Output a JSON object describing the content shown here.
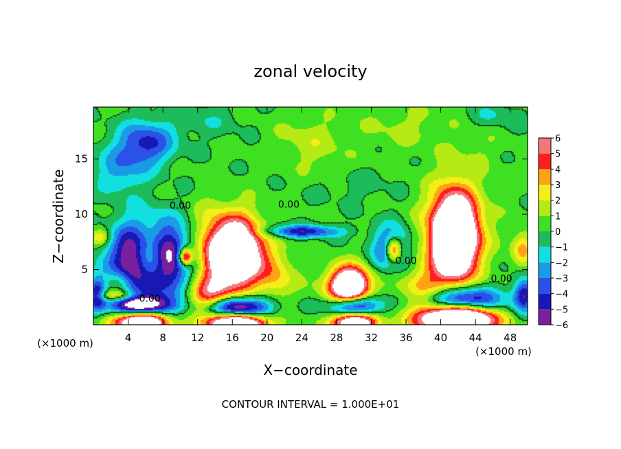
{
  "chart_data": {
    "type": "heatmap",
    "title": "zonal velocity",
    "xlabel": "X−coordinate",
    "ylabel": "Z−coordinate",
    "x_unit_left": "(×1000 m)",
    "x_unit_right": "(×1000 m)",
    "xlim": [
      0,
      50
    ],
    "ylim": [
      0,
      19.7
    ],
    "x_ticks": [
      4,
      8,
      12,
      16,
      20,
      24,
      28,
      32,
      36,
      40,
      44,
      48
    ],
    "x_tick_labels": [
      "4",
      "8",
      "12",
      "16",
      "20",
      "24",
      "28",
      "32",
      "36",
      "40",
      "44",
      "48"
    ],
    "y_ticks": [
      5,
      10,
      15
    ],
    "y_tick_labels": [
      "5",
      "10",
      "15"
    ],
    "colorbar": {
      "min": -6,
      "max": 6,
      "levels": [
        -6,
        -5,
        -4,
        -3,
        -2,
        -1,
        0,
        1,
        2,
        3,
        4,
        5,
        6
      ],
      "labels": [
        "6",
        "5",
        "4",
        "3",
        "2",
        "1",
        "0",
        "−1",
        "−2",
        "−3",
        "−4",
        "−5",
        "−6"
      ]
    },
    "contour_labels": [
      "0.00",
      "0.00",
      "0.00",
      "0.00",
      "0.00"
    ],
    "features": [
      {
        "x": 6,
        "z": 16.5,
        "value": -4.5,
        "sx": 3.2,
        "sz": 2.0
      },
      {
        "x": 3,
        "z": 14,
        "value": -2.5,
        "sx": 3.0,
        "sz": 2.2
      },
      {
        "x": 13,
        "z": 18.5,
        "value": -1.0,
        "sx": 4.0,
        "sz": 1.5
      },
      {
        "x": 25,
        "z": 16.5,
        "value": 1.3,
        "sx": 4.0,
        "sz": 2.5
      },
      {
        "x": 36,
        "z": 18,
        "value": 1.0,
        "sx": 5.0,
        "sz": 2.0
      },
      {
        "x": 44,
        "z": 16,
        "value": 0.6,
        "sx": 3.0,
        "sz": 2.0
      },
      {
        "x": 46,
        "z": 19,
        "value": -1.2,
        "sx": 3.0,
        "sz": 1.2
      },
      {
        "x": 30,
        "z": 12.5,
        "value": -0.6,
        "sx": 5.0,
        "sz": 1.5
      },
      {
        "x": 24,
        "z": 8.5,
        "value": -4.8,
        "sx": 4.5,
        "sz": 0.55
      },
      {
        "x": 6.5,
        "z": 6.2,
        "value": 9.0,
        "sx": 1.9,
        "sz": 2.4
      },
      {
        "x": 6.5,
        "z": 6.0,
        "value": -12.0,
        "sx": 4.0,
        "sz": 3.2
      },
      {
        "x": 10.5,
        "z": 6.2,
        "value": 8.0,
        "sx": 0.8,
        "sz": 0.8
      },
      {
        "x": 16.5,
        "z": 6.5,
        "value": 12.0,
        "sx": 2.8,
        "sz": 3.0
      },
      {
        "x": 13.5,
        "z": 6.2,
        "value": 3.5,
        "sx": 2.5,
        "sz": 4.0
      },
      {
        "x": 21,
        "z": 4.5,
        "value": 2.5,
        "sx": 2.0,
        "sz": 2.5
      },
      {
        "x": 29.5,
        "z": 3.6,
        "value": 9.0,
        "sx": 2.0,
        "sz": 1.5
      },
      {
        "x": 29,
        "z": 3.5,
        "value": 3.0,
        "sx": 3.0,
        "sz": 2.0
      },
      {
        "x": 34.5,
        "z": 6.8,
        "value": 8.0,
        "sx": 1.0,
        "sz": 1.2
      },
      {
        "x": 34.3,
        "z": 6.9,
        "value": -5.5,
        "sx": 2.0,
        "sz": 2.0
      },
      {
        "x": 41.5,
        "z": 8.0,
        "value": 12.0,
        "sx": 2.3,
        "sz": 3.4
      },
      {
        "x": 41.5,
        "z": 8.5,
        "value": 4.0,
        "sx": 3.5,
        "sz": 4.5
      },
      {
        "x": 38,
        "z": 2.8,
        "value": 3.5,
        "sx": 3.0,
        "sz": 2.5
      },
      {
        "x": 2.5,
        "z": 2.7,
        "value": 4.0,
        "sx": 2.6,
        "sz": 0.5
      },
      {
        "x": 13,
        "z": 2.5,
        "value": 4.0,
        "sx": 2.5,
        "sz": 1.5
      },
      {
        "x": 5.5,
        "z": 0.4,
        "value": 12.0,
        "sx": 3.0,
        "sz": 1.0
      },
      {
        "x": 16.5,
        "z": 0.2,
        "value": 12.0,
        "sx": 3.2,
        "sz": 0.9
      },
      {
        "x": 30,
        "z": 0.3,
        "value": 10.0,
        "sx": 2.5,
        "sz": 0.9
      },
      {
        "x": 42,
        "z": 0.6,
        "value": 14.0,
        "sx": 4.0,
        "sz": 1.3
      },
      {
        "x": 5.5,
        "z": 1.7,
        "value": -8.0,
        "sx": 3.6,
        "sz": 1.0
      },
      {
        "x": 16.5,
        "z": 1.6,
        "value": -8.0,
        "sx": 3.8,
        "sz": 1.0
      },
      {
        "x": 30,
        "z": 1.7,
        "value": -7.0,
        "sx": 3.0,
        "sz": 1.0
      },
      {
        "x": 42,
        "z": 2.2,
        "value": -8.0,
        "sx": 4.6,
        "sz": 1.2
      },
      {
        "x": 49.5,
        "z": 2.8,
        "value": -5.0,
        "sx": 1.2,
        "sz": 1.5
      },
      {
        "x": 0.3,
        "z": 2.8,
        "value": -5.0,
        "sx": 1.0,
        "sz": 1.5
      },
      {
        "x": 0.8,
        "z": 8.0,
        "value": 3.0,
        "sx": 1.2,
        "sz": 0.8
      },
      {
        "x": 3.0,
        "z": 4.0,
        "value": 2.0,
        "sx": 1.5,
        "sz": 1.0
      },
      {
        "x": 49.3,
        "z": 7.0,
        "value": 3.0,
        "sx": 1.2,
        "sz": 1.5
      }
    ]
  },
  "footer": {
    "contour_interval": "CONTOUR INTERVAL = 1.000E+01"
  }
}
